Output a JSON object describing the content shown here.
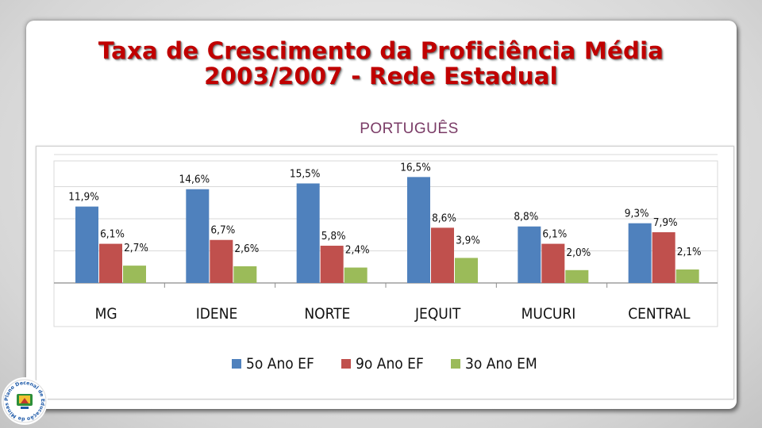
{
  "slide": {
    "title_line1": "Taxa de Crescimento da Proficiência Média",
    "title_line2": "2003/2007  - Rede Estadual",
    "subtitle": "PORTUGUÊS"
  },
  "colors": {
    "title": "#c00000",
    "subtitle": "#7a3b66",
    "series": [
      "#4f81bd",
      "#c0504d",
      "#9bbb59"
    ]
  },
  "logo": {
    "text": "Plano Decenal de Educação de Minas Gerais",
    "icon": "education-plan-logo-icon"
  },
  "chart_data": {
    "type": "bar",
    "title": "",
    "xlabel": "",
    "ylabel": "",
    "categories": [
      "MG",
      "IDENE",
      "NORTE",
      "JEQUIT",
      "MUCURI",
      "CENTRAL"
    ],
    "series": [
      {
        "name": "5o Ano EF",
        "values": [
          11.9,
          14.6,
          15.5,
          16.5,
          8.8,
          9.3
        ],
        "labels": [
          "11,9%",
          "14,6%",
          "15,5%",
          "16,5%",
          "8,8%",
          "9,3%"
        ]
      },
      {
        "name": "9o Ano EF",
        "values": [
          6.1,
          6.7,
          5.8,
          8.6,
          6.1,
          7.9
        ],
        "labels": [
          "6,1%",
          "6,7%",
          "5,8%",
          "8,6%",
          "6,1%",
          "7,9%"
        ]
      },
      {
        "name": "3o Ano EM",
        "values": [
          2.7,
          2.6,
          2.4,
          3.9,
          2.0,
          2.1
        ],
        "labels": [
          "2,7%",
          "2,6%",
          "2,4%",
          "3,9%",
          "2,0%",
          "2,1%"
        ]
      }
    ],
    "ylim": [
      0,
      20
    ],
    "grid": true,
    "legend_position": "bottom"
  }
}
